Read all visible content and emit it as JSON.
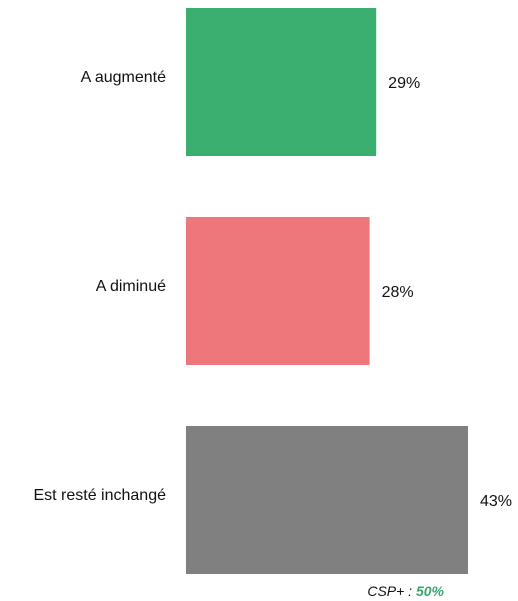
{
  "chart_data": {
    "type": "bar",
    "orientation": "horizontal",
    "categories": [
      "A augmenté",
      "A diminué",
      "Est resté inchangé"
    ],
    "values": [
      29,
      28,
      43
    ],
    "value_labels": [
      "29%",
      "28%",
      "43%"
    ],
    "unit": "%",
    "colors": [
      "#3aae6e",
      "#ee777c",
      "#808080"
    ],
    "xlim": [
      0,
      43
    ],
    "grid": false,
    "legend": "none",
    "annotation": {
      "prefix": "CSP+ :",
      "value": "50%",
      "value_color": "#3aa76c"
    }
  }
}
